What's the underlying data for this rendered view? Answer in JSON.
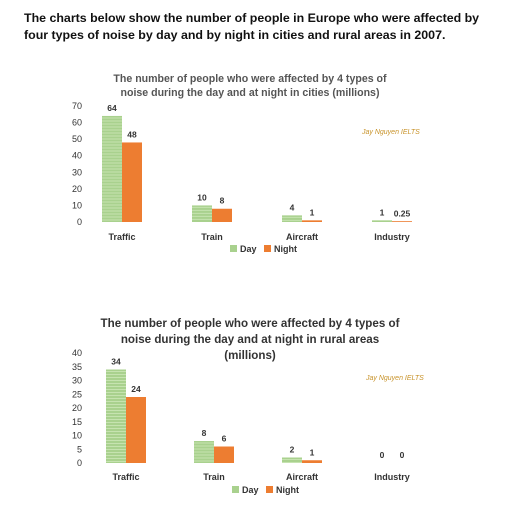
{
  "intro": "The charts below show the number of people in Europe who were affected by four types of noise by day and by night in cities and rural areas in 2007.",
  "watermark": "Jay Nguyen IELTS",
  "colors": {
    "day": "#a9d18e",
    "night": "#ed7d31"
  },
  "chart_data": [
    {
      "type": "bar",
      "title": "The number of people who were affected by 4 types of noise during the day and at night in cities (millions)",
      "categories": [
        "Traffic",
        "Train",
        "Aircraft",
        "Industry"
      ],
      "series": [
        {
          "name": "Day",
          "values": [
            64,
            10,
            4,
            1
          ]
        },
        {
          "name": "Night",
          "values": [
            48,
            8,
            1,
            0.25
          ]
        }
      ],
      "yticks": [
        0,
        10,
        20,
        30,
        40,
        50,
        60,
        70
      ],
      "ylim": [
        0,
        70
      ],
      "legend": "bottom",
      "grid": false
    },
    {
      "type": "bar",
      "title": "The number of people who were affected by 4 types of noise during the day and at night in rural areas (millions)",
      "categories": [
        "Traffic",
        "Train",
        "Aircraft",
        "Industry"
      ],
      "series": [
        {
          "name": "Day",
          "values": [
            34,
            8,
            2,
            0
          ]
        },
        {
          "name": "Night",
          "values": [
            24,
            6,
            1,
            0
          ]
        }
      ],
      "yticks": [
        0,
        5,
        10,
        15,
        20,
        25,
        30,
        35,
        40
      ],
      "ylim": [
        0,
        40
      ],
      "legend": "bottom",
      "grid": false
    }
  ]
}
